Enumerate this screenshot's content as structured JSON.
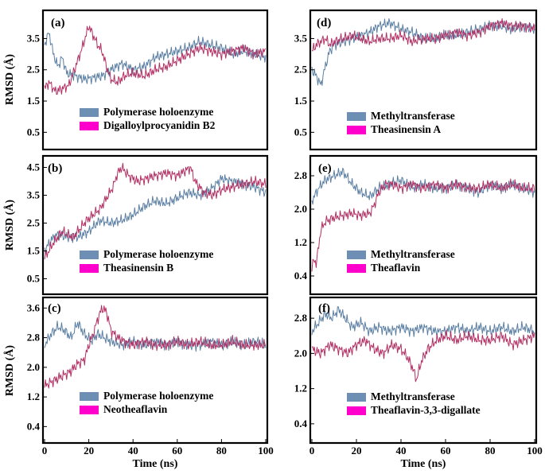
{
  "y_axis_label": "RMSD (Å)",
  "x_axis_label": "Time (ns)",
  "colors": {
    "protein": "#5b7fa3",
    "ligand": "#b22f63",
    "legend_protein": "#6d8fb4",
    "legend_ligand": "#ff00cc"
  },
  "chart_data": [
    {
      "panel": "(a)",
      "type": "line",
      "xlim": [
        0,
        100
      ],
      "ylim": [
        0,
        4.3
      ],
      "yticks": [
        "0.5",
        "1.5",
        "2.5",
        "3.5"
      ],
      "series": [
        {
          "name": "Polymerase holoenzyme",
          "role": "protein",
          "x": [
            0,
            2,
            4,
            6,
            8,
            10,
            14,
            18,
            22,
            26,
            30,
            35,
            40,
            45,
            50,
            55,
            60,
            65,
            70,
            75,
            80,
            85,
            90,
            95,
            100
          ],
          "y": [
            3.3,
            3.7,
            3.0,
            2.6,
            2.9,
            2.4,
            2.3,
            2.2,
            2.25,
            2.3,
            2.5,
            2.7,
            2.5,
            2.6,
            2.9,
            3.0,
            3.1,
            3.2,
            3.4,
            3.3,
            3.2,
            3.0,
            3.1,
            3.0,
            2.9
          ]
        },
        {
          "name": "Digalloylprocyanidin B2",
          "role": "ligand",
          "x": [
            0,
            2,
            5,
            8,
            11,
            14,
            17,
            20,
            22,
            24,
            26,
            28,
            30,
            33,
            36,
            40,
            45,
            50,
            55,
            60,
            65,
            70,
            75,
            80,
            85,
            90,
            95,
            100
          ],
          "y": [
            1.9,
            2.1,
            1.8,
            1.9,
            2.0,
            2.6,
            3.2,
            3.9,
            3.6,
            3.3,
            3.1,
            2.6,
            2.2,
            2.1,
            2.3,
            2.4,
            2.3,
            2.5,
            2.6,
            2.8,
            3.0,
            3.2,
            3.1,
            3.0,
            3.1,
            3.2,
            3.0,
            3.1
          ]
        }
      ]
    },
    {
      "panel": "(d)",
      "type": "line",
      "xlim": [
        0,
        100
      ],
      "ylim": [
        0,
        4.3
      ],
      "yticks": [
        "0.5",
        "1.5",
        "2.5",
        "3.5"
      ],
      "series": [
        {
          "name": "Methyltransferase",
          "role": "protein",
          "x": [
            0,
            2,
            4,
            6,
            8,
            10,
            14,
            18,
            22,
            26,
            30,
            35,
            40,
            45,
            50,
            55,
            60,
            65,
            70,
            75,
            80,
            85,
            90,
            95,
            100
          ],
          "y": [
            2.5,
            2.3,
            2.0,
            2.6,
            3.1,
            3.3,
            3.4,
            3.5,
            3.6,
            3.7,
            3.9,
            4.0,
            3.8,
            3.7,
            3.5,
            3.5,
            3.6,
            3.6,
            3.7,
            3.8,
            3.9,
            3.9,
            3.8,
            3.9,
            3.8
          ]
        },
        {
          "name": "Theasinensin A",
          "role": "ligand",
          "x": [
            0,
            2,
            4,
            6,
            8,
            10,
            14,
            18,
            22,
            26,
            30,
            35,
            40,
            45,
            50,
            55,
            60,
            65,
            70,
            75,
            80,
            85,
            90,
            95,
            100
          ],
          "y": [
            3.1,
            3.3,
            3.4,
            3.5,
            3.3,
            3.4,
            3.5,
            3.6,
            3.5,
            3.4,
            3.5,
            3.5,
            3.6,
            3.4,
            3.5,
            3.5,
            3.6,
            3.7,
            3.6,
            3.7,
            3.9,
            4.0,
            3.9,
            3.9,
            3.8
          ]
        }
      ]
    },
    {
      "panel": "(b)",
      "type": "line",
      "xlim": [
        0,
        100
      ],
      "ylim": [
        0,
        4.8
      ],
      "yticks": [
        "0.5",
        "1.5",
        "2.5",
        "3.5",
        "4.5"
      ],
      "series": [
        {
          "name": "Polymerase holoenzyme",
          "role": "protein",
          "x": [
            0,
            3,
            6,
            10,
            15,
            20,
            25,
            30,
            35,
            40,
            45,
            50,
            55,
            60,
            65,
            70,
            75,
            80,
            85,
            90,
            95,
            100
          ],
          "y": [
            1.5,
            1.9,
            2.1,
            2.0,
            2.0,
            2.2,
            2.6,
            2.5,
            2.6,
            2.8,
            3.1,
            3.3,
            3.2,
            3.4,
            3.6,
            3.5,
            3.7,
            4.1,
            4.0,
            3.9,
            3.8,
            3.6
          ]
        },
        {
          "name": "Theasinensin B",
          "role": "ligand",
          "x": [
            0,
            2,
            4,
            6,
            8,
            10,
            13,
            16,
            19,
            22,
            25,
            28,
            31,
            33,
            35,
            38,
            42,
            46,
            50,
            55,
            60,
            64,
            66,
            68,
            72,
            76,
            80,
            85,
            90,
            95,
            100
          ],
          "y": [
            1.3,
            1.5,
            1.8,
            2.0,
            2.2,
            2.1,
            2.0,
            2.3,
            2.6,
            2.8,
            3.0,
            3.4,
            3.8,
            4.3,
            4.5,
            4.2,
            4.0,
            4.1,
            4.2,
            4.3,
            4.2,
            4.4,
            4.5,
            4.0,
            3.6,
            3.5,
            3.7,
            3.8,
            3.9,
            4.0,
            3.9
          ]
        }
      ]
    },
    {
      "panel": "(e)",
      "type": "line",
      "xlim": [
        0,
        100
      ],
      "ylim": [
        0,
        3.2
      ],
      "yticks": [
        "0.4",
        "1.2",
        "2.0",
        "2.8"
      ],
      "series": [
        {
          "name": "Methyltransferase",
          "role": "protein",
          "x": [
            0,
            3,
            6,
            10,
            14,
            18,
            22,
            26,
            30,
            35,
            40,
            45,
            50,
            55,
            60,
            65,
            70,
            75,
            80,
            85,
            90,
            95,
            100
          ],
          "y": [
            2.2,
            2.5,
            2.7,
            2.8,
            2.9,
            2.6,
            2.4,
            2.3,
            2.5,
            2.6,
            2.7,
            2.5,
            2.6,
            2.5,
            2.5,
            2.6,
            2.5,
            2.4,
            2.6,
            2.5,
            2.6,
            2.5,
            2.4
          ]
        },
        {
          "name": "Theaflavin",
          "role": "ligand",
          "x": [
            0,
            1,
            2,
            3,
            4,
            6,
            10,
            14,
            18,
            22,
            26,
            28,
            30,
            33,
            36,
            40,
            45,
            50,
            55,
            60,
            65,
            70,
            75,
            80,
            85,
            90,
            95,
            100
          ],
          "y": [
            0.6,
            0.8,
            0.7,
            1.1,
            1.5,
            1.7,
            1.8,
            1.85,
            1.9,
            1.85,
            1.9,
            2.1,
            2.4,
            2.6,
            2.6,
            2.5,
            2.6,
            2.5,
            2.6,
            2.5,
            2.6,
            2.5,
            2.5,
            2.6,
            2.5,
            2.6,
            2.5,
            2.5
          ]
        }
      ]
    },
    {
      "panel": "(c)",
      "type": "line",
      "xlim": [
        0,
        100
      ],
      "ylim": [
        0,
        3.8
      ],
      "yticks": [
        "0.4",
        "1.2",
        "2.0",
        "2.8",
        "3.6"
      ],
      "series": [
        {
          "name": "Polymerase holoenzyme",
          "role": "protein",
          "x": [
            0,
            3,
            6,
            9,
            12,
            15,
            18,
            21,
            24,
            27,
            30,
            35,
            40,
            45,
            50,
            55,
            60,
            65,
            70,
            75,
            80,
            85,
            90,
            95,
            100
          ],
          "y": [
            2.6,
            2.9,
            3.1,
            3.0,
            2.8,
            3.2,
            2.9,
            2.7,
            2.9,
            2.8,
            2.7,
            2.6,
            2.7,
            2.6,
            2.7,
            2.6,
            2.7,
            2.6,
            2.6,
            2.7,
            2.6,
            2.7,
            2.6,
            2.7,
            2.6
          ]
        },
        {
          "name": "Neotheaflavin",
          "role": "ligand",
          "x": [
            0,
            3,
            6,
            9,
            12,
            15,
            18,
            20,
            22,
            24,
            26,
            28,
            30,
            33,
            36,
            40,
            45,
            50,
            55,
            60,
            65,
            70,
            75,
            80,
            85,
            90,
            95,
            100
          ],
          "y": [
            1.5,
            1.6,
            1.7,
            1.8,
            1.9,
            2.1,
            2.2,
            2.6,
            2.9,
            3.3,
            3.6,
            3.5,
            3.0,
            2.8,
            2.7,
            2.6,
            2.7,
            2.6,
            2.6,
            2.7,
            2.6,
            2.7,
            2.6,
            2.6,
            2.7,
            2.6,
            2.6,
            2.6
          ]
        }
      ]
    },
    {
      "panel": "(f)",
      "type": "line",
      "xlim": [
        0,
        100
      ],
      "ylim": [
        0,
        3.2
      ],
      "yticks": [
        "0.4",
        "1.2",
        "2.0",
        "2.8"
      ],
      "series": [
        {
          "name": "Methyltransferase",
          "role": "protein",
          "x": [
            0,
            3,
            6,
            9,
            12,
            15,
            18,
            22,
            26,
            30,
            35,
            40,
            45,
            50,
            55,
            60,
            65,
            70,
            75,
            80,
            85,
            90,
            95,
            100
          ],
          "y": [
            2.5,
            2.7,
            2.9,
            2.8,
            3.0,
            2.8,
            2.6,
            2.7,
            2.5,
            2.6,
            2.5,
            2.6,
            2.5,
            2.6,
            2.5,
            2.5,
            2.6,
            2.5,
            2.6,
            2.5,
            2.6,
            2.5,
            2.6,
            2.5
          ]
        },
        {
          "name": "Theaflavin-3,3-digallate",
          "role": "ligand",
          "x": [
            0,
            4,
            8,
            12,
            16,
            20,
            24,
            28,
            32,
            36,
            40,
            43,
            45,
            47,
            49,
            52,
            56,
            60,
            65,
            70,
            75,
            80,
            85,
            90,
            95,
            100
          ],
          "y": [
            2.1,
            2.0,
            2.2,
            2.1,
            2.0,
            2.2,
            2.3,
            2.1,
            2.0,
            2.2,
            2.1,
            1.9,
            1.7,
            1.4,
            1.8,
            2.1,
            2.3,
            2.4,
            2.3,
            2.4,
            2.3,
            2.3,
            2.4,
            2.2,
            2.3,
            2.4
          ]
        }
      ]
    }
  ]
}
